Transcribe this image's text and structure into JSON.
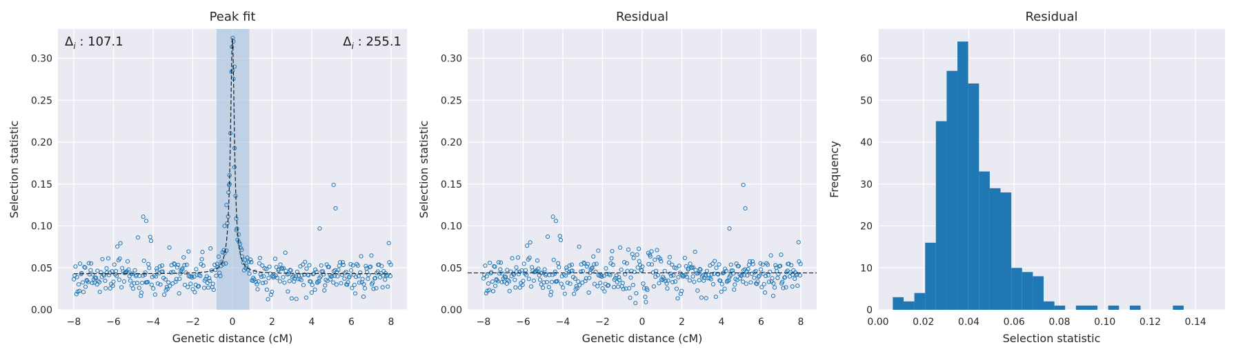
{
  "chart_data": [
    {
      "type": "scatter",
      "title": "Peak fit",
      "xlabel": "Genetic distance (cM)",
      "ylabel": "Selection statistic",
      "xlim": [
        -8.8,
        8.8
      ],
      "ylim": [
        0.0,
        0.335
      ],
      "xticks": [
        -8,
        -6,
        -4,
        -2,
        0,
        2,
        4,
        6,
        8
      ],
      "yticks": [
        0.0,
        0.05,
        0.1,
        0.15,
        0.2,
        0.25,
        0.3
      ],
      "grid": true,
      "annotations": [
        "Δ_i : 107.1",
        "Δ_i : 255.1"
      ],
      "shaded_region": {
        "x0": -0.8,
        "x1": 0.85
      },
      "baseline": 0.043,
      "peak": {
        "center": 0.0,
        "height": 0.324
      },
      "points": {
        "x_range": [
          -8.0,
          8.0
        ],
        "count": 400,
        "notable": [
          {
            "x": 0.05,
            "y": 0.32
          },
          {
            "x": 0.1,
            "y": 0.29
          },
          {
            "x": 0.0,
            "y": 0.285
          },
          {
            "x": 0.1,
            "y": 0.17
          },
          {
            "x": -0.15,
            "y": 0.15
          },
          {
            "x": -0.2,
            "y": 0.14
          },
          {
            "x": -0.3,
            "y": 0.125
          },
          {
            "x": -0.4,
            "y": 0.1
          },
          {
            "x": 0.2,
            "y": 0.095
          },
          {
            "x": 5.1,
            "y": 0.149
          },
          {
            "x": 5.2,
            "y": 0.121
          },
          {
            "x": -4.5,
            "y": 0.111
          },
          {
            "x": -4.35,
            "y": 0.106
          },
          {
            "x": 4.4,
            "y": 0.097
          }
        ]
      }
    },
    {
      "type": "scatter",
      "title": "Residual",
      "xlabel": "Genetic distance (cM)",
      "ylabel": "Selection statistic",
      "xlim": [
        -8.8,
        8.8
      ],
      "ylim": [
        0.0,
        0.335
      ],
      "xticks": [
        -8,
        -6,
        -4,
        -2,
        0,
        2,
        4,
        6,
        8
      ],
      "yticks": [
        0.0,
        0.05,
        0.1,
        0.15,
        0.2,
        0.25,
        0.3
      ],
      "grid": true,
      "baseline": 0.044,
      "points": {
        "x_range": [
          -8.0,
          8.0
        ],
        "count": 400,
        "notable": [
          {
            "x": 5.1,
            "y": 0.149
          },
          {
            "x": 5.2,
            "y": 0.121
          },
          {
            "x": -4.5,
            "y": 0.111
          },
          {
            "x": -4.35,
            "y": 0.106
          },
          {
            "x": 4.4,
            "y": 0.097
          }
        ]
      }
    },
    {
      "type": "bar",
      "title": "Residual",
      "xlabel": "Selection statistic",
      "ylabel": "Frequency",
      "xlim": [
        0.0,
        0.153
      ],
      "ylim": [
        0,
        67
      ],
      "xticks": [
        0.0,
        0.02,
        0.04,
        0.06,
        0.08,
        0.1,
        0.12,
        0.14
      ],
      "yticks": [
        0,
        10,
        20,
        30,
        40,
        50,
        60
      ],
      "grid": true,
      "bin_start": 0.0065,
      "bin_width": 0.00475,
      "values": [
        3,
        2,
        4,
        16,
        45,
        57,
        64,
        54,
        33,
        29,
        28,
        10,
        9,
        8,
        2,
        1,
        0,
        1,
        1,
        0,
        1,
        0,
        1,
        0,
        0,
        0,
        1
      ]
    }
  ],
  "colors": {
    "point": "#1f77b4",
    "bar": "#1f77b4",
    "shade": "#9ebcdb",
    "axes_bg": "#eaeaf2",
    "grid": "#ffffff",
    "fit_line": "#1a1a1a"
  }
}
